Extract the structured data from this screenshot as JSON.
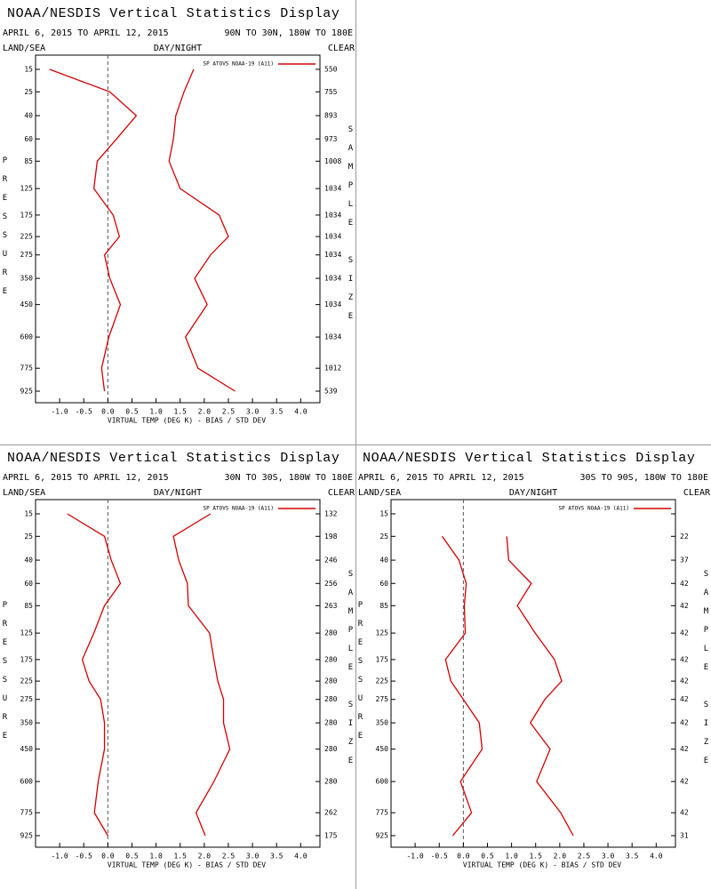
{
  "chart_data": [
    {
      "type": "line",
      "title": "NOAA/NESDIS Vertical Statistics Display",
      "subtitle": "APRIL 6, 2015 TO APRIL 12, 2015",
      "region": "90N TO 30N, 180W TO 180E",
      "left_label": "LAND/SEA",
      "center_label": "DAY/NIGHT",
      "right_label": "CLEAR",
      "legend": "SP ATOVS NOAA-19 (A11)",
      "ylabel": "PRESSURE",
      "y2label": "SAMPLE SIZE",
      "xlabel": "VIRTUAL TEMP (DEG K) - BIAS / STD DEV",
      "y": [
        15,
        25,
        40,
        60,
        85,
        125,
        175,
        225,
        275,
        350,
        450,
        600,
        775,
        925
      ],
      "ylim": [
        15,
        925
      ],
      "xlim": [
        -1.5,
        4.4
      ],
      "xticks": [
        {
          "value": -1,
          "label": "-1.0"
        },
        -0.5,
        {
          "value": 0,
          "label": "0.0"
        },
        0.5,
        {
          "value": 1,
          "label": "1.0"
        },
        1.5,
        {
          "value": 2,
          "label": "2.0"
        },
        2.5,
        {
          "value": 3,
          "label": "3.0"
        },
        3.5,
        {
          "value": 4,
          "label": "4.0"
        }
      ],
      "series": [
        {
          "color": "#d40000",
          "values": [
            -1.21,
            0.04,
            0.59,
            0.18,
            -0.22,
            -0.29,
            0.11,
            0.24,
            -0.07,
            0.04,
            0.26,
            0.02,
            -0.13,
            -0.07
          ]
        },
        {
          "color": "#d40000",
          "values": [
            1.78,
            1.58,
            1.41,
            1.36,
            1.27,
            1.5,
            2.31,
            2.5,
            2.13,
            1.8,
            2.06,
            1.61,
            1.87,
            2.64
          ]
        }
      ],
      "sample_size": [
        550,
        755,
        893,
        973,
        1008,
        1034,
        1034,
        1034,
        1034,
        1034,
        1034,
        1034,
        1012,
        539
      ]
    },
    {
      "type": "line",
      "title": "NOAA/NESDIS Vertical Statistics Display",
      "subtitle": "APRIL 6, 2015 TO APRIL 12, 2015",
      "region": "30N TO 30S, 180W TO 180E",
      "left_label": "LAND/SEA",
      "center_label": "DAY/NIGHT",
      "right_label": "CLEAR",
      "legend": "SP ATOVS NOAA-19 (A11)",
      "ylabel": "PRESSURE",
      "y2label": "SAMPLE SIZE",
      "xlabel": "VIRTUAL TEMP (DEG K) - BIAS / STD DEV",
      "y": [
        15,
        25,
        40,
        60,
        85,
        125,
        175,
        225,
        275,
        350,
        450,
        600,
        775,
        925
      ],
      "ylim": [
        15,
        925
      ],
      "xlim": [
        -1.5,
        4.4
      ],
      "xticks": [
        {
          "value": -1,
          "label": "-1.0"
        },
        -0.5,
        {
          "value": 0,
          "label": "0.0"
        },
        0.5,
        {
          "value": 1,
          "label": "1.0"
        },
        1.5,
        {
          "value": 2,
          "label": "2.0"
        },
        2.5,
        {
          "value": 3,
          "label": "3.0"
        },
        3.5,
        {
          "value": 4,
          "label": "4.0"
        }
      ],
      "series": [
        {
          "color": "#d40000",
          "values": [
            -0.84,
            -0.07,
            0.07,
            0.26,
            -0.07,
            -0.29,
            -0.53,
            -0.39,
            -0.15,
            -0.07,
            -0.07,
            -0.2,
            -0.28,
            0
          ]
        },
        {
          "color": "#d40000",
          "values": [
            2.13,
            1.36,
            1.47,
            1.65,
            1.67,
            2.11,
            2.2,
            2.28,
            2.4,
            2.4,
            2.53,
            2.2,
            1.83,
            2.02
          ]
        }
      ],
      "sample_size": [
        132,
        198,
        246,
        256,
        263,
        280,
        280,
        280,
        280,
        280,
        280,
        280,
        262,
        175
      ]
    },
    {
      "type": "line",
      "title": "NOAA/NESDIS Vertical Statistics Display",
      "subtitle": "APRIL 6, 2015 TO APRIL 12, 2015",
      "region": "30S TO 90S, 180W TO 180E",
      "left_label": "LAND/SEA",
      "center_label": "DAY/NIGHT",
      "right_label": "CLEAR",
      "legend": "SP ATOVS NOAA-19 (A11)",
      "ylabel": "PRESSURE",
      "y2label": "SAMPLE SIZE",
      "xlabel": "VIRTUAL TEMP (DEG K) - BIAS / STD DEV",
      "y": [
        15,
        25,
        40,
        60,
        85,
        125,
        175,
        225,
        275,
        350,
        450,
        600,
        775,
        925
      ],
      "ylim": [
        15,
        925
      ],
      "xlim": [
        -1.5,
        4.4
      ],
      "xticks": [
        {
          "value": -1,
          "label": "-1.0"
        },
        -0.5,
        {
          "value": 0,
          "label": "0.0"
        },
        0.5,
        {
          "value": 1,
          "label": "1.0"
        },
        1.5,
        {
          "value": 2,
          "label": "2.0"
        },
        2.5,
        {
          "value": 3,
          "label": "3.0"
        },
        3.5,
        {
          "value": 4,
          "label": "4.0"
        }
      ],
      "series": [
        {
          "color": "#d40000",
          "values": [
            null,
            -0.44,
            -0.09,
            0.06,
            0.02,
            0.04,
            -0.37,
            -0.26,
            0,
            0.33,
            0.39,
            -0.06,
            0.17,
            -0.22
          ]
        },
        {
          "color": "#d40000",
          "values": [
            null,
            0.9,
            0.94,
            1.41,
            1.12,
            1.49,
            1.89,
            2.04,
            1.69,
            1.39,
            1.8,
            1.52,
            2.02,
            2.28
          ]
        }
      ],
      "sample_size": [
        null,
        22,
        37,
        42,
        42,
        42,
        42,
        42,
        42,
        42,
        42,
        42,
        42,
        31
      ]
    }
  ]
}
